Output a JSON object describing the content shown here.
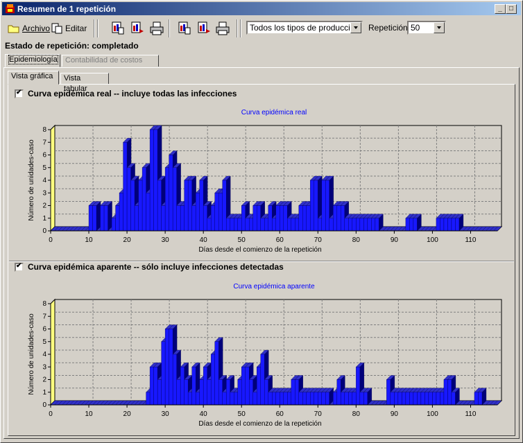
{
  "window": {
    "title": "Resumen de 1 repetición",
    "controls": [
      "_",
      "□",
      "×"
    ]
  },
  "toolbar": {
    "archivo_label": "Archivo",
    "editar_label": "Editar",
    "production_type": "Todos los tipos de producción",
    "repetition_label": "Repetición:",
    "repetition_value": "50"
  },
  "status": "Estado de repetición: completado",
  "tabs": {
    "main": [
      "Epidemiología",
      "Contabilidad de costos"
    ],
    "sub": [
      "Vista gráfica",
      "Vista tabular"
    ]
  },
  "sections": {
    "real_label": "Curva epidémica real -- incluye todas las infecciones",
    "apparent_label": "Curva epidémica aparente -- sólo incluye infecciones detectadas"
  },
  "colors": {
    "bar_front": "#1818ff",
    "bar_side": "#00007a",
    "bar_top": "#3030c8",
    "wall": "#ffff80",
    "title": "#0000ff"
  },
  "chart_data": [
    {
      "type": "bar",
      "title": "Curva epidémica real",
      "xlabel": "Días desde el comienzo de la repetición",
      "ylabel": "Número de unidades-caso",
      "ylim": [
        0,
        8
      ],
      "xlim": [
        0,
        117
      ],
      "xticks": [
        0,
        10,
        20,
        30,
        40,
        50,
        60,
        70,
        80,
        90,
        100,
        110
      ],
      "yticks": [
        0,
        1,
        2,
        3,
        4,
        5,
        6,
        7,
        8
      ],
      "grid": true,
      "x": [
        0,
        1,
        2,
        3,
        4,
        5,
        6,
        7,
        8,
        9,
        10,
        11,
        12,
        13,
        14,
        15,
        16,
        17,
        18,
        19,
        20,
        21,
        22,
        23,
        24,
        25,
        26,
        27,
        28,
        29,
        30,
        31,
        32,
        33,
        34,
        35,
        36,
        37,
        38,
        39,
        40,
        41,
        42,
        43,
        44,
        45,
        46,
        47,
        48,
        49,
        50,
        51,
        52,
        53,
        54,
        55,
        56,
        57,
        58,
        59,
        60,
        61,
        62,
        63,
        64,
        65,
        66,
        67,
        68,
        69,
        70,
        71,
        72,
        73,
        74,
        75,
        76,
        77,
        78,
        79,
        80,
        81,
        82,
        83,
        84,
        85,
        86,
        87,
        88,
        89,
        90,
        91,
        92,
        93,
        94,
        95,
        96,
        97,
        98,
        99,
        100,
        101,
        102,
        103,
        104,
        105,
        106,
        107,
        108,
        109,
        110,
        111,
        112,
        113,
        114,
        115,
        116
      ],
      "values": [
        0,
        0,
        0,
        0,
        0,
        0,
        0,
        0,
        0,
        0,
        2,
        2,
        0,
        2,
        2,
        0,
        1,
        2,
        3,
        7,
        5,
        4,
        2,
        4,
        5,
        3,
        8,
        8,
        4,
        2,
        5,
        6,
        5,
        2,
        2,
        4,
        4,
        2,
        3,
        4,
        2,
        1,
        2,
        3,
        3,
        4,
        1,
        1,
        1,
        1,
        2,
        1,
        1,
        2,
        2,
        1,
        1,
        2,
        1,
        2,
        2,
        2,
        1,
        1,
        1,
        2,
        2,
        2,
        4,
        4,
        1,
        4,
        4,
        1,
        2,
        2,
        2,
        1,
        1,
        1,
        1,
        1,
        1,
        1,
        1,
        1,
        0,
        0,
        0,
        0,
        0,
        0,
        0,
        1,
        1,
        1,
        0,
        0,
        0,
        0,
        0,
        1,
        1,
        1,
        1,
        1,
        1,
        0,
        0,
        0,
        0,
        0,
        0,
        0,
        0,
        0,
        0
      ],
      "peak_values_note": ""
    },
    {
      "type": "bar",
      "title": "Curva epidémica aparente",
      "xlabel": "Días desde el comienzo de la repetición",
      "ylabel": "Número de unidades-caso",
      "ylim": [
        0,
        8
      ],
      "xlim": [
        0,
        117
      ],
      "xticks": [
        0,
        10,
        20,
        30,
        40,
        50,
        60,
        70,
        80,
        90,
        100,
        110
      ],
      "yticks": [
        0,
        1,
        2,
        3,
        4,
        5,
        6,
        7,
        8
      ],
      "grid": true,
      "x": [
        0,
        1,
        2,
        3,
        4,
        5,
        6,
        7,
        8,
        9,
        10,
        11,
        12,
        13,
        14,
        15,
        16,
        17,
        18,
        19,
        20,
        21,
        22,
        23,
        24,
        25,
        26,
        27,
        28,
        29,
        30,
        31,
        32,
        33,
        34,
        35,
        36,
        37,
        38,
        39,
        40,
        41,
        42,
        43,
        44,
        45,
        46,
        47,
        48,
        49,
        50,
        51,
        52,
        53,
        54,
        55,
        56,
        57,
        58,
        59,
        60,
        61,
        62,
        63,
        64,
        65,
        66,
        67,
        68,
        69,
        70,
        71,
        72,
        73,
        74,
        75,
        76,
        77,
        78,
        79,
        80,
        81,
        82,
        83,
        84,
        85,
        86,
        87,
        88,
        89,
        90,
        91,
        92,
        93,
        94,
        95,
        96,
        97,
        98,
        99,
        100,
        101,
        102,
        103,
        104,
        105,
        106,
        107,
        108,
        109,
        110,
        111,
        112,
        113,
        114,
        115,
        116
      ],
      "values": [
        0,
        0,
        0,
        0,
        0,
        0,
        0,
        0,
        0,
        0,
        0,
        0,
        0,
        0,
        0,
        0,
        0,
        0,
        0,
        0,
        0,
        0,
        0,
        0,
        0,
        1,
        3,
        3,
        2,
        5,
        6,
        6,
        4,
        2,
        3,
        2,
        1,
        3,
        1,
        2,
        3,
        2,
        4,
        5,
        2,
        1,
        2,
        1,
        1,
        2,
        3,
        3,
        2,
        1,
        3,
        4,
        2,
        1,
        1,
        1,
        1,
        1,
        1,
        2,
        2,
        1,
        1,
        1,
        1,
        1,
        1,
        1,
        1,
        0,
        1,
        2,
        1,
        1,
        1,
        1,
        3,
        1,
        1,
        0,
        0,
        0,
        0,
        0,
        2,
        1,
        1,
        1,
        1,
        1,
        1,
        1,
        1,
        1,
        1,
        1,
        1,
        1,
        1,
        2,
        2,
        1,
        0,
        0,
        0,
        0,
        0,
        1,
        1,
        0,
        0,
        0,
        0
      ]
    }
  ]
}
